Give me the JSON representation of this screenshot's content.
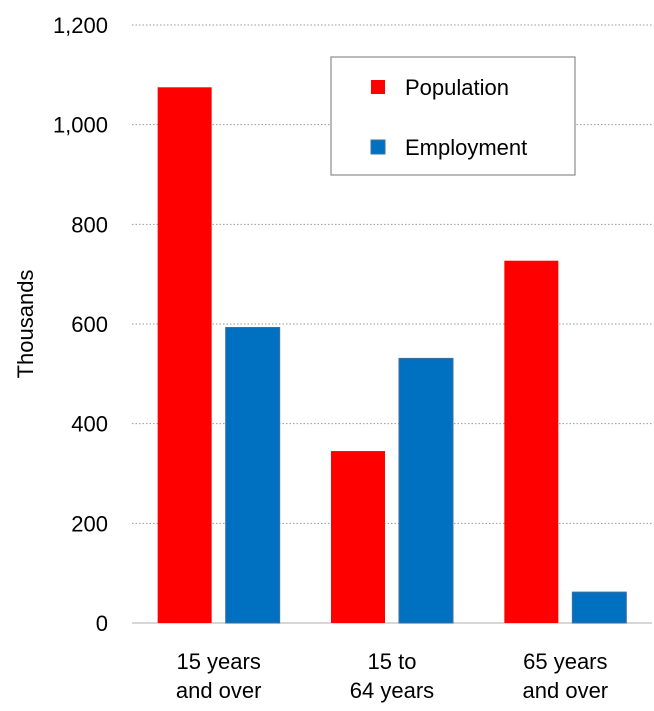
{
  "chart_data": {
    "type": "bar",
    "title": "",
    "xlabel": "",
    "ylabel": "Thousands",
    "ylim": [
      0,
      1200
    ],
    "yticks": [
      0,
      200,
      400,
      600,
      800,
      1000,
      1200
    ],
    "ytick_labels": [
      "0",
      "200",
      "400",
      "600",
      "800",
      "1,000",
      "1,200"
    ],
    "grid": "horizontal dotted",
    "legend_position": "top-right",
    "categories": [
      [
        "15 years",
        "and over"
      ],
      [
        "15 to",
        "64 years"
      ],
      [
        "65 years",
        "and over"
      ]
    ],
    "series": [
      {
        "name": "Population",
        "color": "#ff0000",
        "values": [
          1075,
          345,
          727
        ]
      },
      {
        "name": "Employment",
        "color": "#0070c0",
        "values": [
          593,
          531,
          62
        ]
      }
    ]
  }
}
